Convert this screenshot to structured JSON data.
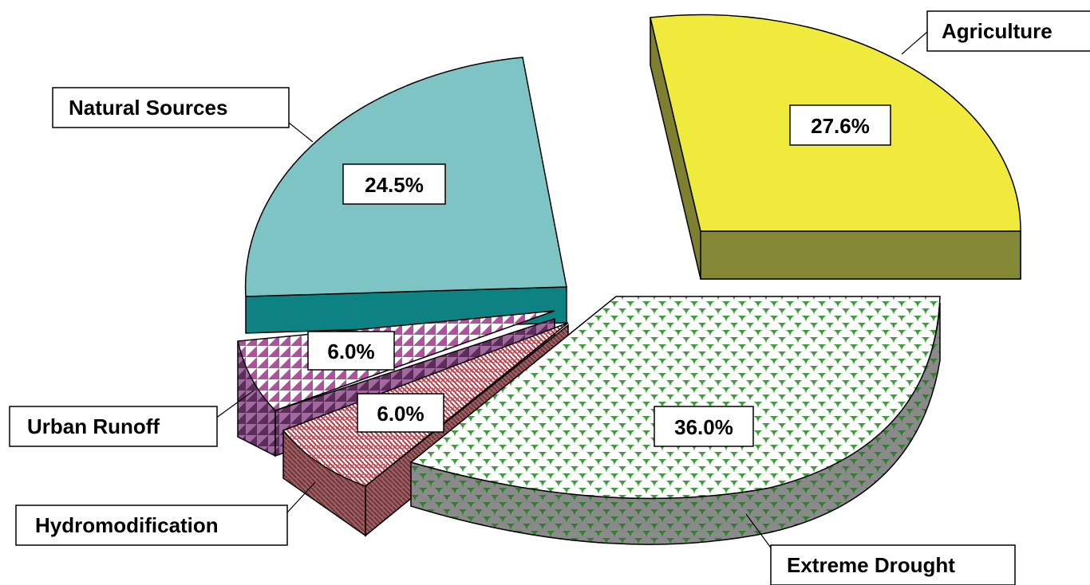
{
  "chart_data": {
    "type": "pie",
    "style": "3d-exploded",
    "slices": [
      {
        "key": "agriculture",
        "label": "Agriculture",
        "value": 27.6,
        "display": "27.6%",
        "top_color": "#f0ea3a",
        "side_color": "#7f7f2c",
        "pattern": "solid"
      },
      {
        "key": "extreme_drought",
        "label": "Extreme Drought",
        "value": 36.0,
        "display": "36.0%",
        "top_color": "#41a13c",
        "side_color": "#2e7d2b",
        "pattern": "scales"
      },
      {
        "key": "hydromodification",
        "label": "Hydromodification",
        "value": 6.0,
        "display": "6.0%",
        "top_color": "#c83c4a",
        "side_color": "#8c2a37",
        "pattern": "weave"
      },
      {
        "key": "urban_runoff",
        "label": "Urban Runoff",
        "value": 6.0,
        "display": "6.0%",
        "top_color": "#a64fa0",
        "side_color": "#6b2e68",
        "pattern": "triangles"
      },
      {
        "key": "natural_sources",
        "label": "Natural Sources",
        "value": 24.5,
        "display": "24.5%",
        "top_color": "#7ec3c3",
        "side_color": "#0b8383",
        "pattern": "solid"
      }
    ]
  }
}
